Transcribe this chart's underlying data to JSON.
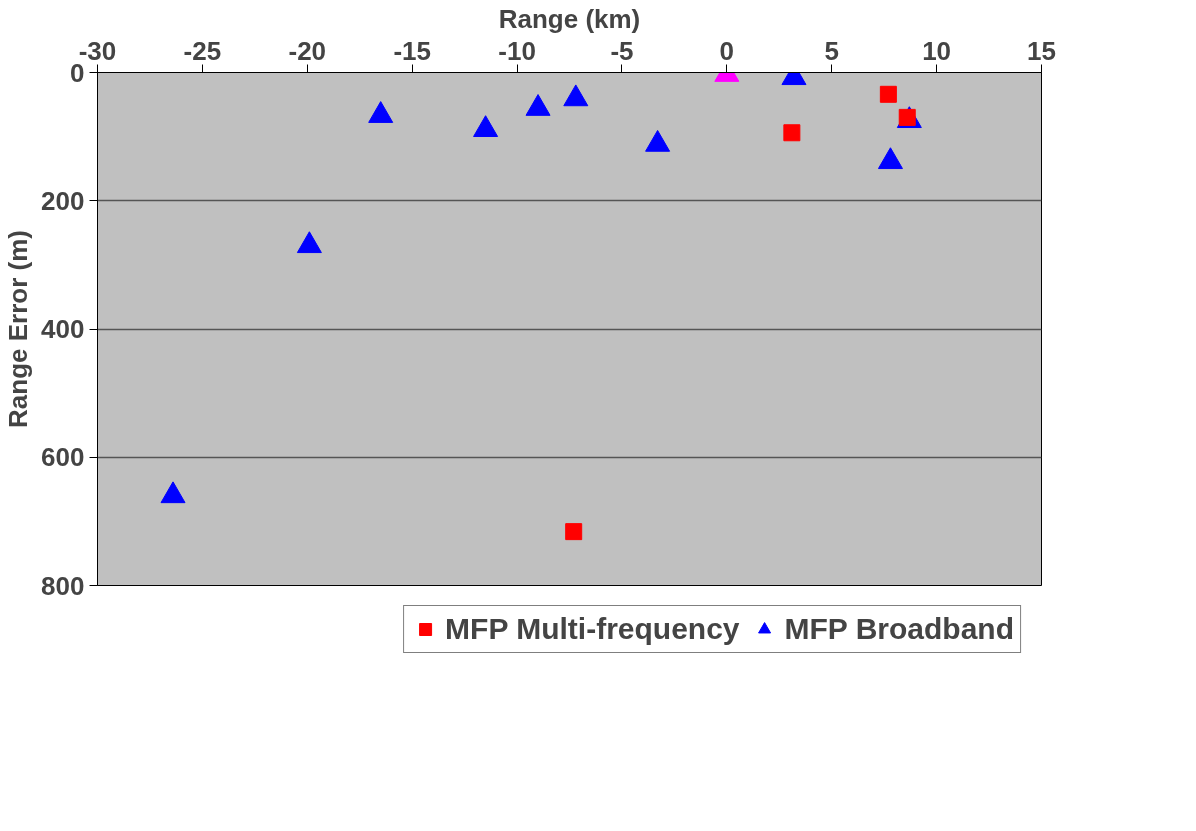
{
  "chart_data": {
    "type": "scatter",
    "xlabel": "Range (km)",
    "ylabel": "Range Error (m)",
    "xlim": [
      -30,
      15
    ],
    "xticks": [
      -30,
      -25,
      -20,
      -15,
      -10,
      -5,
      0,
      5,
      10,
      15
    ],
    "ylim": [
      800,
      0
    ],
    "yticks": [
      0,
      200,
      400,
      600,
      800
    ],
    "grid": "y",
    "legend": "bottom",
    "series": [
      {
        "name": "MFP Multi-frequency",
        "color": "#ff0000",
        "marker": "square",
        "x": [
          -7.3,
          3.1,
          7.7,
          8.6
        ],
        "values": [
          716,
          94,
          34,
          70
        ]
      },
      {
        "name": "MFP Broadband",
        "color": "#0000ff",
        "marker": "triangle",
        "x": [
          -26.4,
          -19.9,
          -16.5,
          -11.5,
          -9.0,
          -7.2,
          -3.3,
          3.2,
          7.8,
          8.7
        ],
        "values": [
          660,
          270,
          67,
          89,
          56,
          41,
          112,
          8,
          139,
          75
        ]
      },
      {
        "color": "#ff00ff",
        "marker": "triangle",
        "x": [
          0
        ],
        "values": [
          3
        ]
      }
    ]
  }
}
